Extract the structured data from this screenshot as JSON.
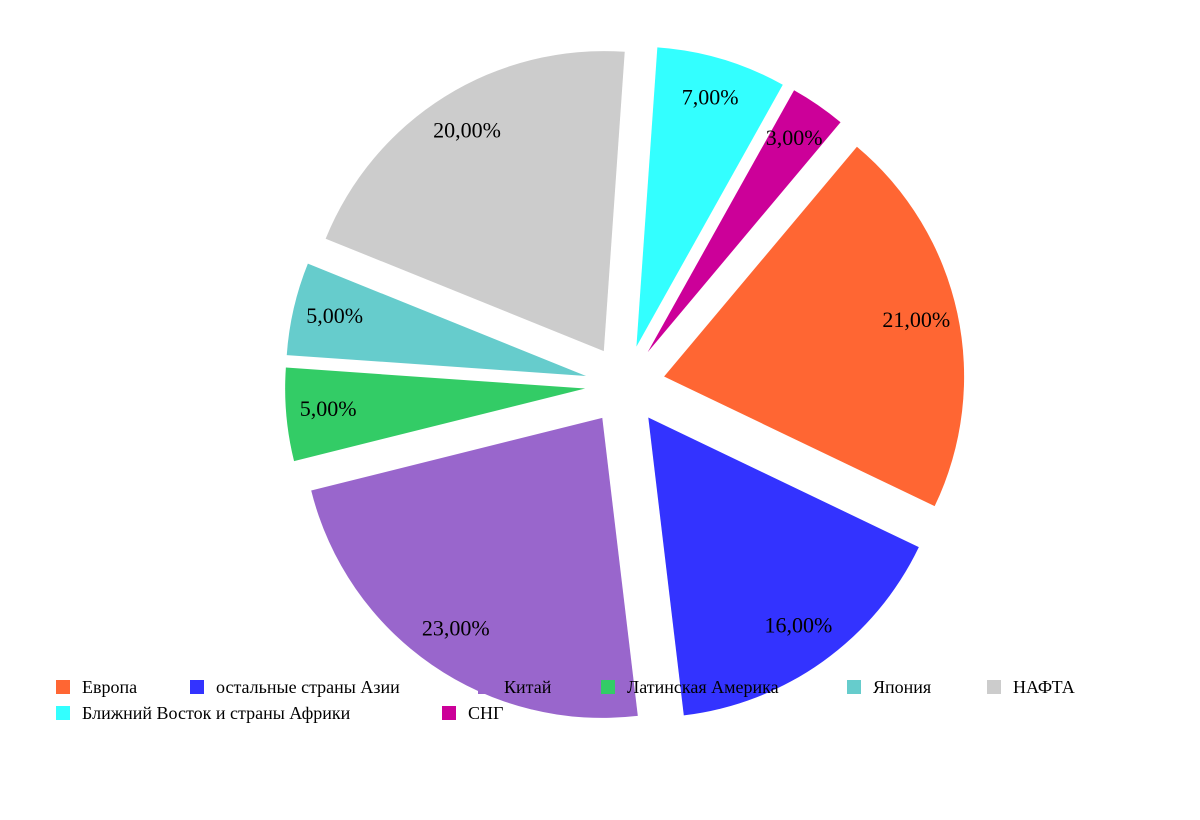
{
  "chart_data": {
    "type": "pie",
    "title": "",
    "exploded": true,
    "legend_position": "bottom",
    "categories": [
      "Европа",
      "остальные страны Азии",
      "Китай",
      "Латинская Америка",
      "Япония",
      "НАФТА",
      "Ближний Восток и страны Африки",
      "СНГ"
    ],
    "values": [
      21,
      16,
      23,
      5,
      5,
      20,
      7,
      3
    ],
    "labels": [
      "21,00%",
      "16,00%",
      "23,00%",
      "5,00%",
      "5,00%",
      "20,00%",
      "7,00%",
      "3,00%"
    ],
    "colors": [
      "#ff6633",
      "#3333ff",
      "#9966cc",
      "#33cc66",
      "#66cccc",
      "#cccccc",
      "#33ffff",
      "#cc0099"
    ]
  }
}
